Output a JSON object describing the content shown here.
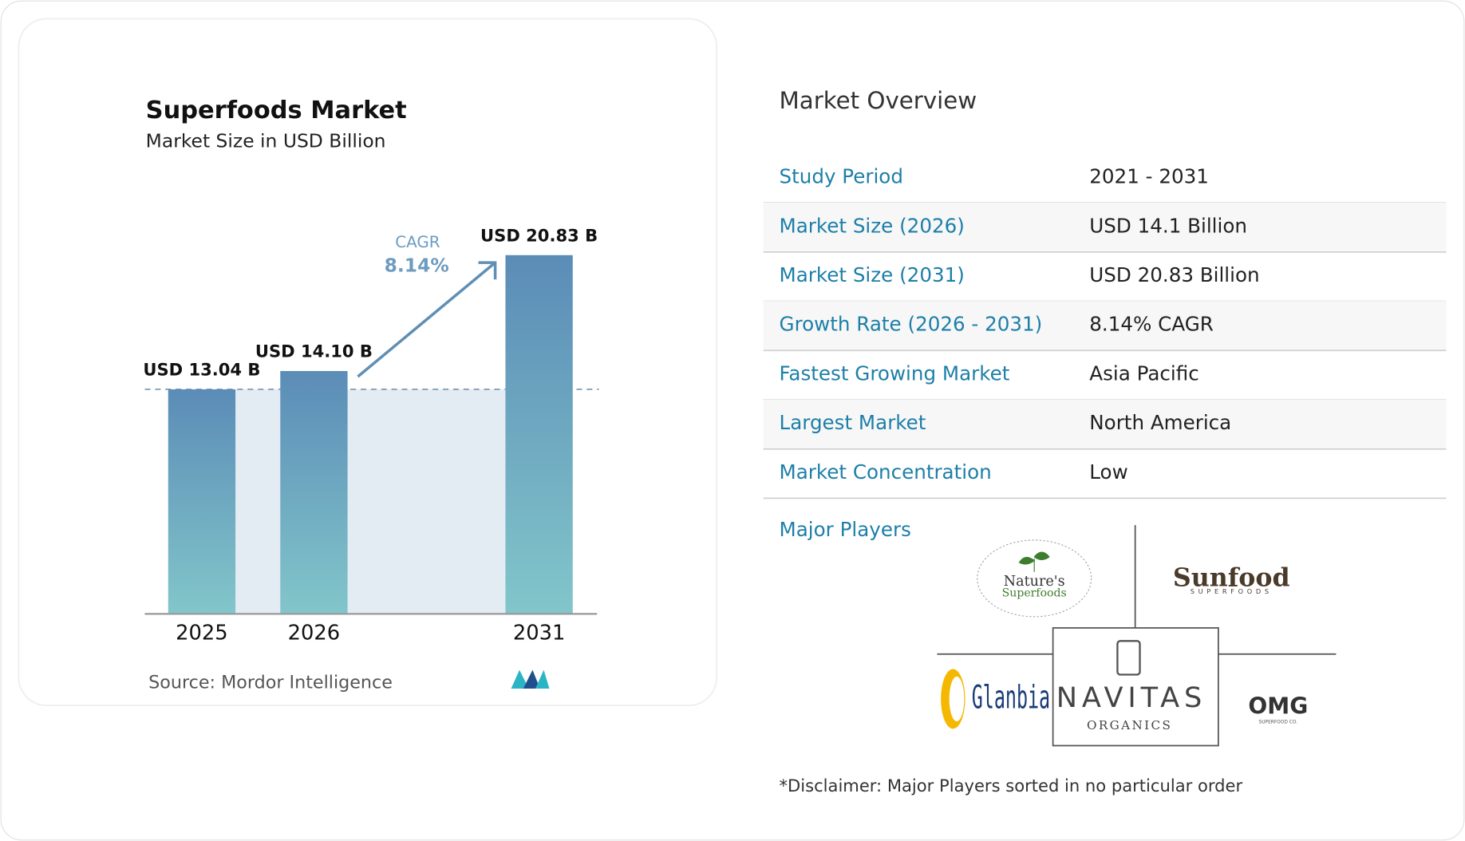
{
  "chart_data": {
    "type": "bar",
    "title": "Superfoods Market",
    "subtitle": "Market Size in USD Billion",
    "categories": [
      "2025",
      "2026",
      "2031"
    ],
    "values": [
      13.04,
      14.1,
      20.83
    ],
    "value_labels": [
      "USD 13.04 B",
      "USD 14.10 B",
      "USD 20.83 B"
    ],
    "colors": [
      "#5b8cb7",
      "#82c6ca"
    ],
    "annotation": {
      "label": "CAGR",
      "value_label": "8.14%"
    },
    "source": "Source:  Mordor Intelligence"
  },
  "overview": {
    "title": "Market Overview",
    "rows": [
      [
        "Study Period",
        "2021 - 2031"
      ],
      [
        "Market Size (2026)",
        "USD 14.1 Billion"
      ],
      [
        "Market Size (2031)",
        "USD 20.83 Billion"
      ],
      [
        "Growth Rate (2026 - 2031)",
        "8.14% CAGR"
      ],
      [
        "Fastest Growing Market",
        "Asia Pacific"
      ],
      [
        "Largest Market",
        "North America"
      ],
      [
        "Market Concentration",
        "Low"
      ]
    ]
  },
  "major_players": {
    "label": "Major Players",
    "logos": [
      "Nature's",
      "Superfoods",
      "Sunfood",
      "SUPERFOODS",
      "Glanbia",
      "NAVITAS",
      "ORGANICS",
      "OMG",
      "SUPERFOOD CO."
    ]
  },
  "disclaimer": "*Disclaimer: Major Players sorted in no particular order"
}
